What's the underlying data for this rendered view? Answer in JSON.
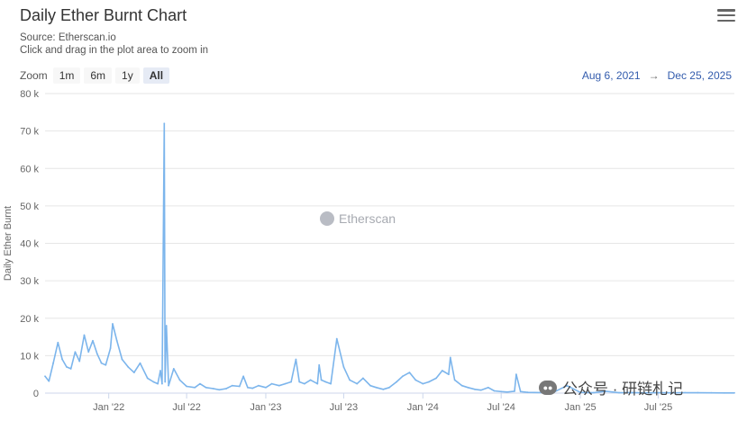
{
  "header": {
    "title": "Daily Ether Burnt Chart",
    "source": "Source: Etherscan.io",
    "instruction": "Click and drag in the plot area to zoom in"
  },
  "zoom": {
    "label": "Zoom",
    "buttons": [
      "1m",
      "6m",
      "1y",
      "All"
    ],
    "active": "All"
  },
  "range": {
    "from": "Aug 6, 2021",
    "arrow": "→",
    "to": "Dec 25, 2025"
  },
  "watermark": {
    "text": "Etherscan"
  },
  "overlay_watermark": {
    "text": "公众号 · 研链札记"
  },
  "colors": {
    "line": "#7cb5ec",
    "grid": "#e6e6e6",
    "axis_text": "#666666"
  },
  "chart_data": {
    "type": "line",
    "title": "Daily Ether Burnt Chart",
    "subtitle": "Source: Etherscan.io",
    "xlabel": "",
    "ylabel": "Daily Ether Burnt",
    "x_range": [
      "2021-08-06",
      "2025-12-25"
    ],
    "ylim": [
      0,
      80000
    ],
    "yticks": [
      0,
      10000,
      20000,
      30000,
      40000,
      50000,
      60000,
      70000,
      80000
    ],
    "ytick_labels": [
      "0",
      "10 k",
      "20 k",
      "30 k",
      "40 k",
      "50 k",
      "60 k",
      "70 k",
      "80 k"
    ],
    "xtick_labels": [
      "Jan '22",
      "Jul '22",
      "Jan '23",
      "Jul '23",
      "Jan '24",
      "Jul '24",
      "Jan '25",
      "Jul '25"
    ],
    "xtick_dates": [
      "2022-01-01",
      "2022-07-01",
      "2023-01-01",
      "2023-07-01",
      "2024-01-01",
      "2024-07-01",
      "2025-01-01",
      "2025-07-01"
    ],
    "grid": true,
    "series": [
      {
        "x": [
          "2021-08-06",
          "2021-08-15",
          "2021-08-25",
          "2021-09-05",
          "2021-09-15",
          "2021-09-25",
          "2021-10-05",
          "2021-10-15",
          "2021-10-25",
          "2021-11-05",
          "2021-11-15",
          "2021-11-25",
          "2021-12-05",
          "2021-12-15",
          "2021-12-25",
          "2022-01-05",
          "2022-01-10",
          "2022-01-20",
          "2022-02-01",
          "2022-02-15",
          "2022-03-01",
          "2022-03-15",
          "2022-04-01",
          "2022-04-15",
          "2022-04-25",
          "2022-05-01",
          "2022-05-05",
          "2022-05-10",
          "2022-05-12",
          "2022-05-15",
          "2022-05-20",
          "2022-06-01",
          "2022-06-15",
          "2022-07-01",
          "2022-07-20",
          "2022-08-01",
          "2022-08-15",
          "2022-09-01",
          "2022-09-15",
          "2022-10-01",
          "2022-10-15",
          "2022-11-01",
          "2022-11-10",
          "2022-11-20",
          "2022-12-01",
          "2022-12-15",
          "2023-01-01",
          "2023-01-15",
          "2023-02-01",
          "2023-02-15",
          "2023-03-01",
          "2023-03-12",
          "2023-03-20",
          "2023-04-01",
          "2023-04-15",
          "2023-05-01",
          "2023-05-05",
          "2023-05-10",
          "2023-05-20",
          "2023-06-01",
          "2023-06-15",
          "2023-07-01",
          "2023-07-15",
          "2023-08-01",
          "2023-08-15",
          "2023-09-01",
          "2023-09-15",
          "2023-10-01",
          "2023-10-15",
          "2023-11-01",
          "2023-11-15",
          "2023-12-01",
          "2023-12-15",
          "2024-01-01",
          "2024-01-15",
          "2024-02-01",
          "2024-02-15",
          "2024-03-01",
          "2024-03-05",
          "2024-03-15",
          "2024-04-01",
          "2024-04-15",
          "2024-05-01",
          "2024-05-15",
          "2024-06-01",
          "2024-06-15",
          "2024-07-01",
          "2024-07-15",
          "2024-08-01",
          "2024-08-05",
          "2024-08-15",
          "2024-09-01",
          "2024-10-01",
          "2024-11-01",
          "2024-12-01",
          "2025-01-01",
          "2025-02-01",
          "2025-03-01",
          "2025-04-01",
          "2025-05-01",
          "2025-06-01",
          "2025-07-01",
          "2025-08-01",
          "2025-09-01",
          "2025-10-01",
          "2025-11-01",
          "2025-12-01",
          "2025-12-25"
        ],
        "values": [
          4500,
          3200,
          8000,
          13500,
          9000,
          7000,
          6500,
          11000,
          8500,
          15500,
          11000,
          14000,
          10500,
          8000,
          7500,
          12000,
          18500,
          14000,
          9000,
          7000,
          5500,
          8000,
          4000,
          3000,
          2500,
          6000,
          2500,
          72000,
          3000,
          18000,
          2000,
          6500,
          3500,
          1800,
          1500,
          2500,
          1500,
          1200,
          900,
          1200,
          2000,
          1800,
          4500,
          1500,
          1300,
          2000,
          1500,
          2500,
          2000,
          2500,
          3000,
          9000,
          3000,
          2500,
          3500,
          2500,
          7500,
          3500,
          3000,
          2500,
          14500,
          7000,
          3500,
          2500,
          4000,
          2000,
          1500,
          1000,
          1500,
          3000,
          4500,
          5500,
          3500,
          2500,
          3000,
          4000,
          6000,
          5000,
          9500,
          3500,
          2000,
          1500,
          1000,
          800,
          1500,
          600,
          400,
          300,
          500,
          5000,
          400,
          200,
          150,
          300,
          2000,
          200,
          100,
          500,
          100,
          150,
          80,
          100,
          80,
          120,
          100,
          80,
          60,
          60
        ]
      }
    ]
  }
}
